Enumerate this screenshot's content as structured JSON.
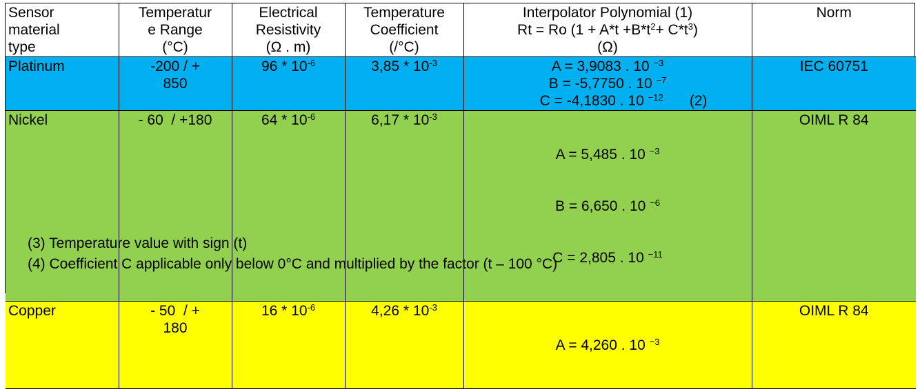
{
  "header": {
    "sensor": [
      "Sensor",
      "material",
      "type"
    ],
    "range": [
      "Temperatur",
      "e Range",
      "(°C)"
    ],
    "resistivity": [
      "Electrical",
      "Resistivity",
      "(Ω . m)"
    ],
    "coeff": [
      "Temperature",
      "Coefficient",
      "(/°C)"
    ],
    "interp_title": "Interpolator Polynomial (1)",
    "interp_formula_a": "Rt = Ro (1 + A*t +B*t",
    "interp_formula_sup1": "2",
    "interp_formula_b": "+ C*t",
    "interp_formula_sup2": "3",
    "interp_formula_c": ")",
    "interp_unit": "(Ω)",
    "norm": "Norm"
  },
  "rows": [
    {
      "material": "Platinum",
      "range": [
        "-200 / +",
        "850"
      ],
      "res_base": "96 * 10",
      "res_exp": "-6",
      "coef_base": "3,85 * 10",
      "coef_exp": "-3",
      "A_base": "A =  3,9083 . 10",
      "A_exp": "−3",
      "B_base": "B = -5,7750 . 10",
      "B_exp": "−7",
      "C_base": "C = -4,1830 . 10",
      "C_exp": "−12",
      "C_note": "(2)",
      "norm": "IEC 60751"
    },
    {
      "material": "Nickel",
      "range": [
        "- 60  / +180"
      ],
      "res_base": "64 * 10",
      "res_exp": "-6",
      "coef_base": "6,17 * 10",
      "coef_exp": "-3",
      "A_base": "A =  5,485   .  10",
      "A_exp": "−3",
      "B_base": "B =  6,650   .   10",
      "B_exp": "−6",
      "C_base": "C =  2,805   .  10",
      "C_exp": "−11",
      "norm": "OIML R 84"
    },
    {
      "material": "Copper",
      "range": [
        "- 50  / +",
        "180"
      ],
      "res_base": "16 * 10",
      "res_exp": "-6",
      "coef_base": "4,26 * 10",
      "coef_exp": "-3",
      "A_base": "A =  4,260   .  10",
      "A_exp": "−3",
      "norm": "OIML R 84"
    }
  ],
  "notes": [
    "(3) Temperature value with sign (t)",
    "(4) Coefficient C applicable only below 0°C and multiplied by the factor (t – 100 °C)"
  ],
  "colors": {
    "platinum": "#00b0f0",
    "nickel": "#92d050",
    "copper": "#ffff00"
  }
}
